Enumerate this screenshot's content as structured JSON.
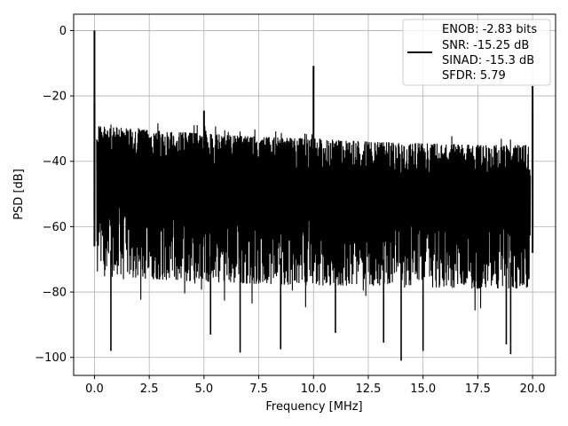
{
  "chart_data": {
    "type": "line",
    "title": "",
    "xlabel": "Frequency [MHz]",
    "ylabel": "PSD [dB]",
    "xlim": [
      -0.95,
      21.05
    ],
    "ylim": [
      -105.5,
      5
    ],
    "xticks": [
      0.0,
      2.5,
      5.0,
      7.5,
      10.0,
      12.5,
      15.0,
      17.5,
      20.0
    ],
    "xtick_labels": [
      "0.0",
      "2.5",
      "5.0",
      "7.5",
      "10.0",
      "12.5",
      "15.0",
      "17.5",
      "20.0"
    ],
    "yticks": [
      0,
      -20,
      -40,
      -60,
      -80,
      -100
    ],
    "ytick_labels": [
      "0",
      "−20",
      "−40",
      "−60",
      "−80",
      "−100"
    ],
    "grid": true,
    "legend_position": "top-right",
    "legend_entries": [
      "ENOB: -2.83 bits",
      "SNR: -15.25 dB",
      "SINAD: -15.3 dB",
      "SFDR: 5.79"
    ],
    "series": [
      {
        "color": "#000000",
        "peaks": [
          {
            "x": 0.0,
            "y": 0.0
          },
          {
            "x": 5.0,
            "y": -24.5
          },
          {
            "x": 10.0,
            "y": -10.8
          },
          {
            "x": 20.0,
            "y": -17.0
          }
        ],
        "noise_envelope_x": [
          0.1,
          2.5,
          5.0,
          7.5,
          10.0,
          12.5,
          15.0,
          17.5,
          19.9
        ],
        "noise_envelope_upper": [
          -29.0,
          -30.5,
          -31.5,
          -32.5,
          -33.0,
          -34.0,
          -34.5,
          -35.0,
          -35.0
        ],
        "noise_envelope_lower": [
          -75.0,
          -76.0,
          -77.0,
          -77.5,
          -78.0,
          -78.0,
          -78.5,
          -79.0,
          -79.0
        ],
        "deep_dips": [
          {
            "x": 0.75,
            "y": -98.0
          },
          {
            "x": 5.3,
            "y": -93.0
          },
          {
            "x": 6.65,
            "y": -98.5
          },
          {
            "x": 8.5,
            "y": -97.5
          },
          {
            "x": 11.0,
            "y": -92.5
          },
          {
            "x": 13.2,
            "y": -95.5
          },
          {
            "x": 14.0,
            "y": -101.0
          },
          {
            "x": 15.0,
            "y": -98.0
          },
          {
            "x": 18.8,
            "y": -96.0
          },
          {
            "x": 19.0,
            "y": -99.0
          }
        ]
      }
    ]
  }
}
